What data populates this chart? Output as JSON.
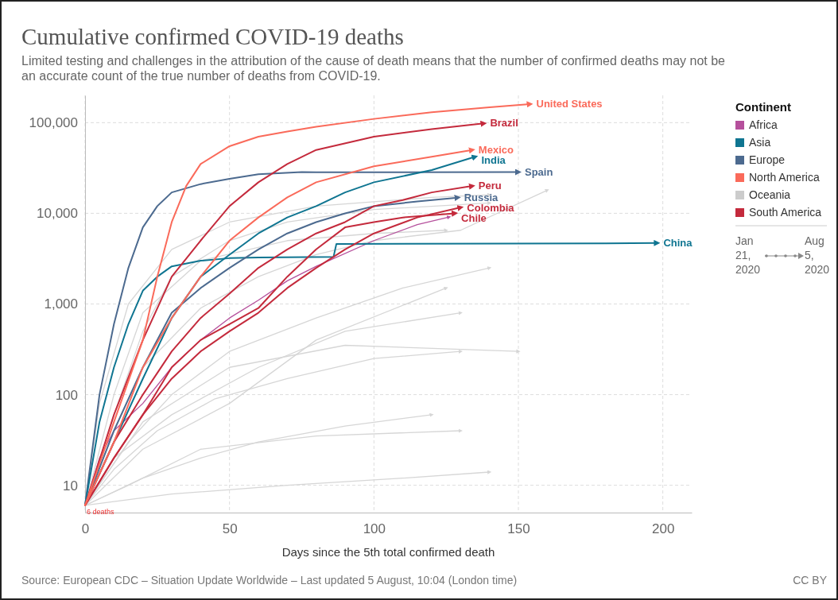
{
  "chart_data": {
    "type": "line",
    "title": "Cumulative confirmed COVID-19 deaths",
    "subtitle": "Limited testing and challenges in the attribution of the cause of death means that the number of confirmed deaths may not be an accurate count of the true number of deaths from COVID-19.",
    "xlabel": "Days since the 5th total confirmed death",
    "legend_title": "Continent",
    "log": "y",
    "grid": true,
    "legend": "right",
    "xlim": [
      0,
      210
    ],
    "xticks": [
      0,
      50,
      100,
      150,
      200
    ],
    "ylim": [
      5,
      200000
    ],
    "yticks": [
      10,
      100,
      {
        "value": 1000,
        "label": "1,000"
      },
      {
        "value": 10000,
        "label": "10,000"
      },
      {
        "value": 100000,
        "label": "100,000"
      }
    ],
    "annotations": [
      {
        "text": "6 deaths",
        "x": 0,
        "y": 6
      },
      "Jan 21, 2020",
      "Aug 5, 2020",
      "Source: European CDC – Situation Update Worldwide – Last updated 5 August, 10:04 (London time)",
      "CC BY"
    ],
    "series": [
      {
        "color": "#d6d6d6",
        "x": [
          0,
          10,
          20,
          40,
          60,
          80,
          100,
          130,
          160
        ],
        "values": [
          6,
          40,
          200,
          900,
          2000,
          3500,
          5000,
          6500,
          18000
        ]
      },
      {
        "color": "#d6d6d6",
        "x": [
          0,
          10,
          20,
          30,
          50,
          70,
          100,
          140
        ],
        "values": [
          6,
          60,
          500,
          2000,
          5000,
          8000,
          11000,
          13000
        ]
      },
      {
        "color": "#d6d6d6",
        "x": [
          0,
          15,
          30,
          50,
          80,
          110,
          140
        ],
        "values": [
          6,
          30,
          100,
          300,
          700,
          1500,
          2500
        ]
      },
      {
        "color": "#d6d6d6",
        "x": [
          0,
          10,
          25,
          45,
          70,
          100,
          130
        ],
        "values": [
          6,
          15,
          40,
          90,
          150,
          250,
          300
        ]
      },
      {
        "color": "#d6d6d6",
        "x": [
          0,
          20,
          40,
          60,
          90,
          120
        ],
        "values": [
          6,
          12,
          20,
          30,
          45,
          60
        ]
      },
      {
        "color": "#d6d6d6",
        "x": [
          0,
          10,
          30,
          60,
          90,
          130
        ],
        "values": [
          6,
          20,
          60,
          200,
          500,
          800
        ]
      },
      {
        "color": "#d6d6d6",
        "x": [
          0,
          5,
          15,
          30,
          50,
          80,
          120,
          140
        ],
        "values": [
          6,
          80,
          1000,
          4000,
          8000,
          12000,
          15000,
          16000
        ]
      },
      {
        "color": "#d6d6d6",
        "x": [
          0,
          30,
          70,
          110,
          140
        ],
        "values": [
          6,
          8,
          10,
          12,
          14
        ]
      },
      {
        "color": "#d6d6d6",
        "x": [
          0,
          20,
          50,
          80,
          125
        ],
        "values": [
          6,
          25,
          80,
          400,
          1500
        ]
      },
      {
        "color": "#d6d6d6",
        "x": [
          0,
          10,
          20,
          40,
          70,
          100,
          125
        ],
        "values": [
          6,
          100,
          800,
          3000,
          5000,
          6000,
          6500
        ]
      },
      {
        "color": "#d6d6d6",
        "x": [
          0,
          15,
          40,
          80,
          130
        ],
        "values": [
          6,
          10,
          25,
          35,
          40
        ]
      },
      {
        "color": "#d6d6d6",
        "x": [
          0,
          20,
          50,
          90,
          150
        ],
        "values": [
          6,
          50,
          200,
          350,
          300
        ]
      },
      {
        "color": "#b5509c",
        "x": [
          0,
          5,
          10,
          20,
          30,
          40,
          50,
          60,
          70,
          80,
          100,
          115,
          126
        ],
        "values": [
          6,
          20,
          40,
          80,
          200,
          400,
          700,
          1100,
          1800,
          2600,
          5000,
          7500,
          9100
        ]
      },
      {
        "name": "Spain",
        "color": "#4c6a8f",
        "x": [
          0,
          5,
          10,
          15,
          20,
          25,
          30,
          40,
          50,
          60,
          75,
          80,
          150
        ],
        "values": [
          6,
          100,
          600,
          2500,
          7000,
          12000,
          17000,
          21000,
          24000,
          27000,
          28500,
          28400,
          28500
        ]
      },
      {
        "name": "China",
        "color": "#0f7591",
        "x": [
          0,
          5,
          10,
          15,
          20,
          25,
          30,
          40,
          50,
          60,
          86,
          87,
          180,
          198
        ],
        "values": [
          6,
          50,
          200,
          600,
          1400,
          2000,
          2600,
          3000,
          3200,
          3250,
          3300,
          4600,
          4650,
          4700
        ]
      },
      {
        "name": "Russia",
        "color": "#4c6a8f",
        "x": [
          0,
          10,
          20,
          30,
          40,
          50,
          60,
          70,
          80,
          90,
          100,
          115,
          129
        ],
        "values": [
          6,
          40,
          200,
          800,
          1500,
          2500,
          4000,
          6000,
          8000,
          10000,
          12000,
          13500,
          14900
        ]
      },
      {
        "name": "India",
        "color": "#0f7591",
        "x": [
          0,
          10,
          20,
          30,
          40,
          50,
          60,
          70,
          80,
          90,
          100,
          120,
          135
        ],
        "values": [
          6,
          30,
          150,
          700,
          2000,
          3500,
          6000,
          9000,
          12000,
          17000,
          22000,
          30000,
          42000
        ]
      },
      {
        "name": "Chile",
        "color": "#c42a3c",
        "x": [
          0,
          10,
          20,
          30,
          40,
          50,
          60,
          70,
          80,
          90,
          100,
          110,
          128
        ],
        "values": [
          6,
          20,
          60,
          200,
          400,
          600,
          900,
          2000,
          4000,
          7000,
          8000,
          9000,
          10000
        ]
      },
      {
        "name": "Colombia",
        "color": "#c42a3c",
        "x": [
          0,
          10,
          20,
          30,
          40,
          50,
          60,
          70,
          80,
          90,
          100,
          115,
          130
        ],
        "values": [
          6,
          20,
          60,
          150,
          300,
          500,
          800,
          1500,
          2500,
          4000,
          6000,
          9000,
          11600
        ]
      },
      {
        "name": "Peru",
        "color": "#c42a3c",
        "x": [
          0,
          10,
          20,
          30,
          40,
          50,
          60,
          70,
          80,
          90,
          100,
          110,
          120,
          134
        ],
        "values": [
          6,
          30,
          100,
          300,
          700,
          1300,
          2500,
          4000,
          6000,
          8000,
          12000,
          14000,
          17000,
          20000
        ]
      },
      {
        "name": "Mexico",
        "color": "#fa6a5a",
        "x": [
          0,
          10,
          20,
          30,
          40,
          50,
          60,
          70,
          80,
          100,
          120,
          134
        ],
        "values": [
          6,
          30,
          200,
          700,
          2000,
          5000,
          9000,
          15000,
          22000,
          33000,
          42000,
          50000
        ]
      },
      {
        "name": "Brazil",
        "color": "#c42a3c",
        "x": [
          0,
          10,
          20,
          30,
          40,
          50,
          60,
          70,
          80,
          100,
          120,
          138
        ],
        "values": [
          6,
          60,
          400,
          2000,
          5000,
          12000,
          22000,
          35000,
          50000,
          70000,
          85000,
          98000
        ]
      },
      {
        "name": "United States",
        "color": "#fa6a5a",
        "x": [
          0,
          10,
          20,
          25,
          30,
          35,
          40,
          50,
          60,
          70,
          80,
          100,
          120,
          140,
          154
        ],
        "values": [
          6,
          50,
          400,
          2000,
          8000,
          20000,
          35000,
          55000,
          70000,
          80000,
          90000,
          110000,
          130000,
          148000,
          160000
        ]
      },
      {
        "name": "Africa",
        "color": "#b5509c",
        "values": [
          null
        ]
      },
      {
        "name": "Asia",
        "color": "#0f7591",
        "values": [
          null
        ]
      },
      {
        "name": "Europe",
        "color": "#4c6a8f",
        "values": [
          null
        ]
      },
      {
        "name": "North America",
        "color": "#fa6a5a",
        "values": [
          null
        ]
      },
      {
        "name": "Oceania",
        "color": "#cccccc",
        "values": [
          null
        ]
      },
      {
        "name": "South America",
        "color": "#c42a3c",
        "values": [
          null
        ]
      }
    ]
  }
}
